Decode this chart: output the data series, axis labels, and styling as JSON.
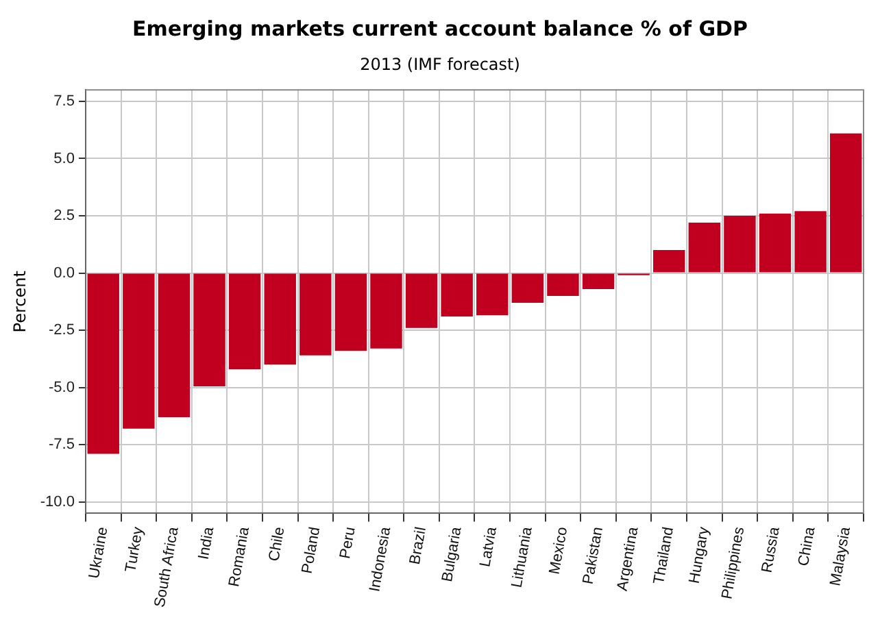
{
  "chart_data": {
    "type": "bar",
    "title": "Emerging markets current account balance % of GDP",
    "subtitle": "2013 (IMF forecast)",
    "ylabel": "Percent",
    "categories": [
      "Ukraine",
      "Turkey",
      "South Africa",
      "India",
      "Romania",
      "Chile",
      "Poland",
      "Peru",
      "Indonesia",
      "Brazil",
      "Bulgaria",
      "Latvia",
      "Lithuania",
      "Mexico",
      "Pakistan",
      "Argentina",
      "Thailand",
      "Hungary",
      "Philippines",
      "Russia",
      "China",
      "Malaysia"
    ],
    "values": [
      -7.9,
      -6.8,
      -6.3,
      -4.95,
      -4.2,
      -4.0,
      -3.6,
      -3.4,
      -3.3,
      -2.4,
      -1.9,
      -1.85,
      -1.3,
      -1.0,
      -0.7,
      -0.1,
      1.0,
      2.2,
      2.5,
      2.6,
      2.7,
      6.1
    ],
    "color": "#c0001e",
    "ylim": [
      -10.5,
      8
    ],
    "yticks": [
      {
        "value": -10,
        "label": "-10.0"
      },
      {
        "value": -7.5,
        "label": "-7.5"
      },
      {
        "value": -5,
        "label": "-5.0"
      },
      {
        "value": -2.5,
        "label": "-2.5"
      },
      {
        "value": 0,
        "label": "0.0"
      },
      {
        "value": 2.5,
        "label": "2.5"
      },
      {
        "value": 5,
        "label": "5.0"
      },
      {
        "value": 7.5,
        "label": "7.5"
      }
    ],
    "grid": true
  }
}
